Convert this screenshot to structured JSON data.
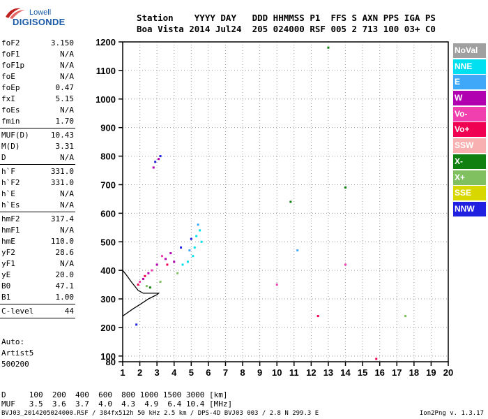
{
  "logo": {
    "top": "Lowell",
    "bottom": "DIGISONDE"
  },
  "header": {
    "line1": "Station    YYYY DAY   DDD HHMMSS P1  FFS S AXN PPS IGA PS",
    "line2": "Boa Vista 2014 Jul24  205 024000 RSF 005 2 713 100 03+ C0"
  },
  "params": [
    {
      "label": "foF2",
      "value": "3.150"
    },
    {
      "label": "foF1",
      "value": "N/A"
    },
    {
      "label": "foF1p",
      "value": "N/A"
    },
    {
      "label": "foE",
      "value": "N/A"
    },
    {
      "label": "foEp",
      "value": "0.47"
    },
    {
      "label": "fxI",
      "value": "5.15"
    },
    {
      "label": "foEs",
      "value": "N/A"
    },
    {
      "label": "fmin",
      "value": "1.70"
    },
    {
      "sep": true
    },
    {
      "label": "MUF(D)",
      "value": "10.43"
    },
    {
      "label": "M(D)",
      "value": "3.31"
    },
    {
      "label": "D",
      "value": "N/A"
    },
    {
      "sep": true
    },
    {
      "label": "h`F",
      "value": "331.0"
    },
    {
      "label": "h`F2",
      "value": "331.0"
    },
    {
      "label": "h`E",
      "value": "N/A"
    },
    {
      "label": "h`Es",
      "value": "N/A"
    },
    {
      "sep": true
    },
    {
      "label": "hmF2",
      "value": "317.4"
    },
    {
      "label": "hmF1",
      "value": "N/A"
    },
    {
      "label": "hmE",
      "value": "110.0"
    },
    {
      "label": "yF2",
      "value": "28.6"
    },
    {
      "label": "yF1",
      "value": "N/A"
    },
    {
      "label": "yE",
      "value": "20.0"
    },
    {
      "label": "B0",
      "value": "47.1"
    },
    {
      "label": "B1",
      "value": "1.00"
    },
    {
      "sep": true
    },
    {
      "label": "C-level",
      "value": "44"
    },
    {
      "sep": true
    }
  ],
  "auto": [
    "Auto:",
    "Artist5",
    "500200"
  ],
  "legend": [
    {
      "label": "NoVal",
      "color": "#a0a0a0"
    },
    {
      "label": "NNE",
      "color": "#00e0f0"
    },
    {
      "label": "E",
      "color": "#40a8f8"
    },
    {
      "label": "W",
      "color": "#b000b0"
    },
    {
      "label": "Vo-",
      "color": "#f040b0"
    },
    {
      "label": "Vo+",
      "color": "#f00050"
    },
    {
      "label": "SSW",
      "color": "#f8b0b0"
    },
    {
      "label": "X-",
      "color": "#108010"
    },
    {
      "label": "X+",
      "color": "#80c060"
    },
    {
      "label": "SSE",
      "color": "#d8d800"
    },
    {
      "label": "NNW",
      "color": "#2020e0"
    }
  ],
  "dist_table": {
    "row1": "D     100  200  400  600  800 1000 1500 3000 [km]",
    "row2": "MUF   3.5  3.6  3.7  4.0  4.3  4.9  6.4 10.4 [MHz]"
  },
  "footer": {
    "left": "BVJ03_2014205024000.RSF / 384fx512h 50 kHz 2.5 km / DPS-4D BVJ03 003 / 2.8 N 299.3 E",
    "right": "Ion2Png v. 1.3.17"
  },
  "chart_data": {
    "type": "scatter",
    "title": "",
    "xlabel": "",
    "ylabel": "",
    "xlim": [
      1,
      20
    ],
    "ylim": [
      80,
      1200
    ],
    "x_ticks": [
      1,
      2,
      3,
      4,
      5,
      6,
      7,
      8,
      9,
      10,
      11,
      12,
      13,
      14,
      15,
      16,
      17,
      18,
      19,
      20
    ],
    "y_ticks": [
      80,
      100,
      200,
      300,
      400,
      500,
      600,
      700,
      800,
      900,
      1000,
      1100,
      1200
    ],
    "grid": true,
    "series": [
      {
        "name": "NNE",
        "color": "#00e0f0",
        "points": [
          [
            5.1,
            450
          ],
          [
            5.3,
            520
          ],
          [
            5.5,
            540
          ],
          [
            4.8,
            430
          ],
          [
            5.6,
            500
          ],
          [
            4.5,
            420
          ],
          [
            5.2,
            480
          ]
        ]
      },
      {
        "name": "E",
        "color": "#40a8f8",
        "points": [
          [
            11.2,
            470
          ],
          [
            5.4,
            560
          ],
          [
            4.9,
            470
          ]
        ]
      },
      {
        "name": "W",
        "color": "#b000b0",
        "points": [
          [
            2.5,
            390
          ],
          [
            3.0,
            420
          ],
          [
            3.5,
            440
          ],
          [
            4.0,
            430
          ],
          [
            2.2,
            370
          ],
          [
            3.8,
            460
          ],
          [
            2.8,
            760
          ],
          [
            3.1,
            790
          ]
        ]
      },
      {
        "name": "Vo-",
        "color": "#f040b0",
        "points": [
          [
            10.0,
            350
          ],
          [
            2.0,
            360
          ],
          [
            2.7,
            400
          ],
          [
            3.3,
            450
          ],
          [
            14.0,
            420
          ]
        ]
      },
      {
        "name": "Vo+",
        "color": "#f00050",
        "points": [
          [
            1.9,
            350
          ],
          [
            2.3,
            380
          ],
          [
            3.6,
            420
          ],
          [
            12.4,
            240
          ],
          [
            15.8,
            90
          ]
        ]
      },
      {
        "name": "X-",
        "color": "#108010",
        "points": [
          [
            10.8,
            640
          ],
          [
            13.0,
            1180
          ],
          [
            14.0,
            690
          ],
          [
            2.6,
            340
          ]
        ]
      },
      {
        "name": "X+",
        "color": "#80c060",
        "points": [
          [
            2.4,
            345
          ],
          [
            3.2,
            360
          ],
          [
            4.2,
            390
          ],
          [
            17.5,
            240
          ]
        ]
      },
      {
        "name": "NNW",
        "color": "#2020e0",
        "points": [
          [
            2.9,
            780
          ],
          [
            3.2,
            800
          ],
          [
            1.8,
            210
          ],
          [
            4.4,
            480
          ],
          [
            5.0,
            510
          ]
        ]
      }
    ],
    "trace_line": [
      [
        1.0,
        240
      ],
      [
        1.6,
        265
      ],
      [
        2.0,
        280
      ],
      [
        2.5,
        300
      ],
      [
        3.0,
        315
      ],
      [
        3.1,
        320
      ],
      [
        2.6,
        320
      ],
      [
        2.2,
        320
      ],
      [
        1.9,
        330
      ],
      [
        1.7,
        345
      ],
      [
        1.5,
        360
      ],
      [
        1.2,
        385
      ],
      [
        1.0,
        400
      ]
    ]
  }
}
